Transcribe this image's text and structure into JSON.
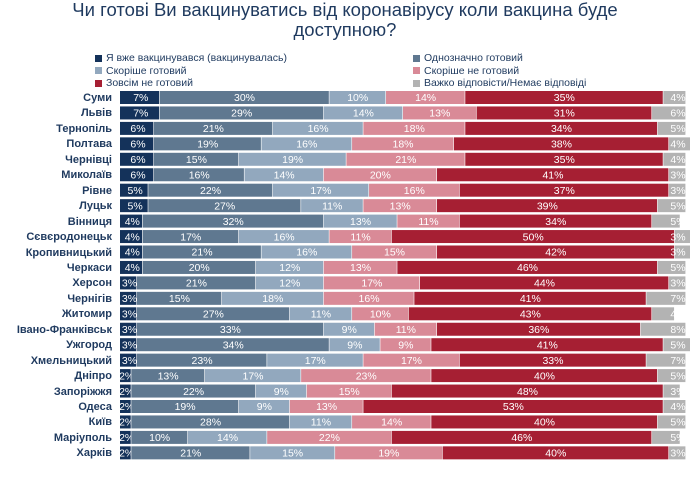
{
  "chart_data": {
    "type": "bar",
    "orientation": "horizontal",
    "stacked": true,
    "title_lines": [
      "Чи готові Ви вакцинуватись від коронавірусу коли вакцина буде",
      "доступною?"
    ],
    "xlim": [
      0,
      100
    ],
    "categories": [
      "Суми",
      "Львів",
      "Тернопіль",
      "Полтава",
      "Чернівці",
      "Миколаїв",
      "Рівне",
      "Луцьк",
      "Вінниця",
      "Сєвєродонецьк",
      "Кропивницький",
      "Черкаси",
      "Херсон",
      "Чернігів",
      "Житомир",
      "Івано-Франківськ",
      "Ужгород",
      "Хмельницький",
      "Дніпро",
      "Запоріжжя",
      "Одеса",
      "Київ",
      "Маріуполь",
      "Харків"
    ],
    "series": [
      {
        "name": "Я вже вакцинувався (вакцинувалась)",
        "color": "#14325a",
        "values": [
          7,
          7,
          6,
          6,
          6,
          6,
          5,
          5,
          4,
          4,
          4,
          4,
          3,
          3,
          3,
          3,
          3,
          3,
          2,
          2,
          2,
          2,
          2,
          2
        ]
      },
      {
        "name": "Однозначно готовий",
        "color": "#5f7890",
        "values": [
          30,
          29,
          21,
          19,
          15,
          16,
          22,
          27,
          32,
          17,
          21,
          20,
          21,
          15,
          27,
          33,
          34,
          23,
          13,
          22,
          19,
          28,
          10,
          21
        ]
      },
      {
        "name": "Скоріше готовий",
        "color": "#92a8be",
        "values": [
          10,
          14,
          16,
          16,
          19,
          14,
          17,
          11,
          13,
          16,
          16,
          12,
          12,
          18,
          11,
          9,
          9,
          17,
          17,
          9,
          9,
          11,
          14,
          15
        ]
      },
      {
        "name": "Скоріше не готовий",
        "color": "#d98a97",
        "values": [
          14,
          13,
          18,
          18,
          21,
          20,
          16,
          13,
          11,
          11,
          15,
          13,
          17,
          16,
          10,
          11,
          9,
          17,
          23,
          15,
          13,
          14,
          22,
          19
        ]
      },
      {
        "name": "Зовсім не готовий",
        "color": "#a61f33",
        "values": [
          35,
          31,
          34,
          38,
          35,
          41,
          37,
          39,
          34,
          50,
          42,
          46,
          44,
          41,
          43,
          36,
          41,
          33,
          40,
          48,
          53,
          40,
          46,
          40
        ]
      },
      {
        "name": "Важко відповісти/Немає відповіді",
        "color": "#b3b3b3",
        "values": [
          4,
          6,
          5,
          4,
          4,
          3,
          3,
          5,
          5,
          3,
          3,
          5,
          3,
          7,
          4,
          8,
          5,
          7,
          5,
          3,
          4,
          5,
          5,
          3
        ]
      }
    ]
  }
}
